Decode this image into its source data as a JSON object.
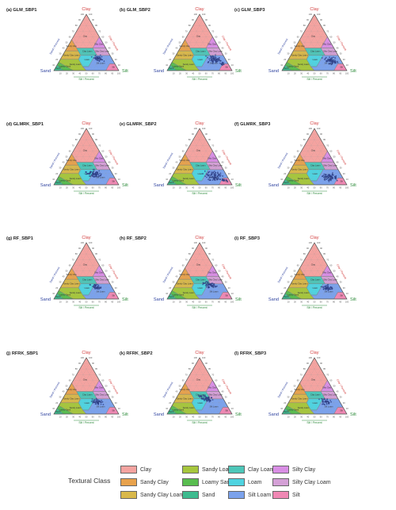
{
  "corner_labels": {
    "top": "Clay",
    "left": "Sand",
    "right": "Silt"
  },
  "axis_titles": {
    "left": "Sand / Percent",
    "right": "Clay / Percent",
    "bottom": "Silt / Percent"
  },
  "ticks": [
    "10",
    "20",
    "30",
    "40",
    "50",
    "60",
    "70",
    "80",
    "90",
    "100"
  ],
  "classes": [
    {
      "key": "clay",
      "label": "Clay",
      "color": "#f4a3a0",
      "zone": "Clay"
    },
    {
      "key": "sandy_clay",
      "label": "Sandy Clay",
      "color": "#e8a24c",
      "zone": "Sandy Clay"
    },
    {
      "key": "sandy_clay_loam",
      "label": "Sandy Clay Loam",
      "color": "#d9b84a",
      "zone": "Sandy Clay Loam"
    },
    {
      "key": "sandy_loam",
      "label": "Sandy Loam",
      "color": "#a6c63d",
      "zone": "Sandy Loam"
    },
    {
      "key": "loamy_sand",
      "label": "Loamy Sand",
      "color": "#58bd4f",
      "zone": "Loamy Sand"
    },
    {
      "key": "sand",
      "label": "Sand",
      "color": "#3dbb8f",
      "zone": "Sand"
    },
    {
      "key": "clay_loam",
      "label": "Clay Loam",
      "color": "#4dc6b8",
      "zone": "Clay Loam"
    },
    {
      "key": "loam",
      "label": "Loam",
      "color": "#4fd3e0",
      "zone": "Loam"
    },
    {
      "key": "silt_loam",
      "label": "Silt Loam",
      "color": "#7ba2ec",
      "zone": "Silt Loam"
    },
    {
      "key": "silty_clay",
      "label": "Silty Clay",
      "color": "#d88ee4",
      "zone": "Silty Clay"
    },
    {
      "key": "silty_clay_loam",
      "label": "Silty Clay Loam",
      "color": "#d4a0d6",
      "zone": "Silty Clay Loam"
    },
    {
      "key": "silt",
      "label": "Silt",
      "color": "#f088b4",
      "zone": "Silt"
    }
  ],
  "legend": {
    "title": "Textural Class"
  },
  "chart_data": [
    {
      "type": "scatter",
      "title": "(a) GLM_SBP1",
      "clusters": [
        {
          "sand": 22,
          "clay": 22,
          "spread": 6,
          "n": 40
        }
      ]
    },
    {
      "type": "scatter",
      "title": "(b) GLM_SBP2",
      "clusters": [
        {
          "sand": 18,
          "clay": 20,
          "spread": 8,
          "n": 70
        },
        {
          "sand": 10,
          "clay": 12,
          "spread": 3,
          "n": 12
        }
      ]
    },
    {
      "type": "scatter",
      "title": "(c) GLM_SBP3",
      "clusters": [
        {
          "sand": 16,
          "clay": 17,
          "spread": 7,
          "n": 60
        }
      ]
    },
    {
      "type": "scatter",
      "title": "(d) GLMRK_SBP1",
      "clusters": [
        {
          "sand": 30,
          "clay": 20,
          "spread": 8,
          "n": 70
        }
      ]
    },
    {
      "type": "scatter",
      "title": "(e) GLMRK_SBP2",
      "clusters": [
        {
          "sand": 20,
          "clay": 15,
          "spread": 10,
          "n": 80
        },
        {
          "sand": 8,
          "clay": 8,
          "spread": 3,
          "n": 15
        }
      ]
    },
    {
      "type": "scatter",
      "title": "(f) GLMRK_SBP3",
      "clusters": [
        {
          "sand": 20,
          "clay": 14,
          "spread": 9,
          "n": 70
        }
      ]
    },
    {
      "type": "scatter",
      "title": "(g) RF_SBP1",
      "clusters": [
        {
          "sand": 24,
          "clay": 22,
          "spread": 6,
          "n": 40
        }
      ]
    },
    {
      "type": "scatter",
      "title": "(h) RF_SBP2",
      "clusters": [
        {
          "sand": 22,
          "clay": 24,
          "spread": 7,
          "n": 55
        }
      ]
    },
    {
      "type": "scatter",
      "title": "(i) RF_SBP3",
      "clusters": [
        {
          "sand": 20,
          "clay": 20,
          "spread": 6,
          "n": 45
        }
      ]
    },
    {
      "type": "scatter",
      "title": "(j) RFRK_SBP1",
      "clusters": [
        {
          "sand": 22,
          "clay": 22,
          "spread": 6,
          "n": 50
        }
      ]
    },
    {
      "type": "scatter",
      "title": "(k) RFRK_SBP2",
      "clusters": [
        {
          "sand": 25,
          "clay": 27,
          "spread": 7,
          "n": 65
        }
      ]
    },
    {
      "type": "scatter",
      "title": "(l) RFRK_SBP3",
      "clusters": [
        {
          "sand": 21,
          "clay": 22,
          "spread": 6,
          "n": 40
        }
      ]
    }
  ]
}
